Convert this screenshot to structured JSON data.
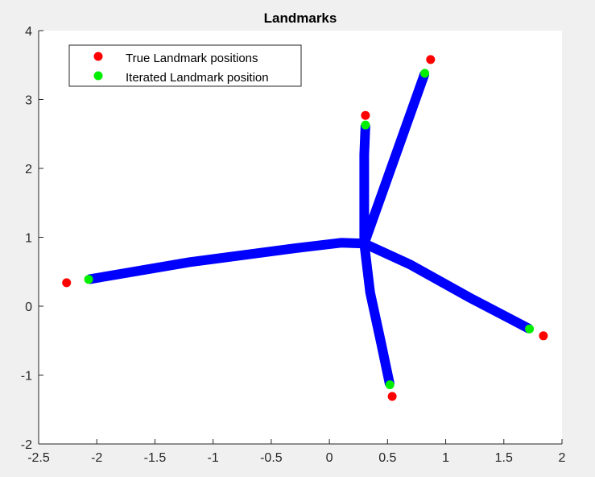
{
  "chart_data": {
    "type": "scatter",
    "title": "Landmarks",
    "xlabel": "",
    "ylabel": "",
    "xlim": [
      -2.5,
      2
    ],
    "ylim": [
      -2,
      4
    ],
    "xticks": [
      -2.5,
      -2,
      -1.5,
      -1,
      -0.5,
      0,
      0.5,
      1,
      1.5,
      2
    ],
    "yticks": [
      -2,
      -1,
      0,
      1,
      2,
      3,
      4
    ],
    "xtick_labels": [
      "-2.5",
      "-2",
      "-1.5",
      "-1",
      "-0.5",
      "0",
      "0.5",
      "1",
      "1.5",
      "2"
    ],
    "ytick_labels": [
      "-2",
      "-1",
      "0",
      "1",
      "2",
      "3",
      "4"
    ],
    "grid": false,
    "legend_position": "top-left",
    "colors": {
      "true": "#ff0000",
      "iterated": "#00ee00",
      "paths": "#0000ff"
    },
    "legend": [
      {
        "name": "True Landmark positions",
        "color": "#ff0000"
      },
      {
        "name": "Iterated Landmark position",
        "color": "#00ee00"
      }
    ],
    "series": [
      {
        "name": "True Landmark positions",
        "points": [
          [
            -2.26,
            0.34
          ],
          [
            0.31,
            2.77
          ],
          [
            0.87,
            3.58
          ],
          [
            1.84,
            -0.43
          ],
          [
            0.54,
            -1.31
          ]
        ]
      },
      {
        "name": "Iterated Landmark position",
        "points": [
          [
            -2.07,
            0.39
          ],
          [
            0.31,
            2.63
          ],
          [
            0.82,
            3.38
          ],
          [
            1.72,
            -0.33
          ],
          [
            0.52,
            -1.14
          ]
        ]
      }
    ],
    "paths": [
      [
        [
          0.3,
          0.91
        ],
        [
          0.1,
          0.92
        ],
        [
          -0.3,
          0.84
        ],
        [
          -1.2,
          0.64
        ],
        [
          -2.07,
          0.39
        ]
      ],
      [
        [
          0.3,
          0.91
        ],
        [
          0.3,
          1.5
        ],
        [
          0.3,
          2.2
        ],
        [
          0.31,
          2.63
        ]
      ],
      [
        [
          0.3,
          0.91
        ],
        [
          0.82,
          3.38
        ]
      ],
      [
        [
          0.3,
          0.91
        ],
        [
          0.7,
          0.6
        ],
        [
          1.2,
          0.13
        ],
        [
          1.72,
          -0.33
        ]
      ],
      [
        [
          0.3,
          0.91
        ],
        [
          0.35,
          0.2
        ],
        [
          0.44,
          -0.5
        ],
        [
          0.52,
          -1.14
        ]
      ]
    ]
  }
}
